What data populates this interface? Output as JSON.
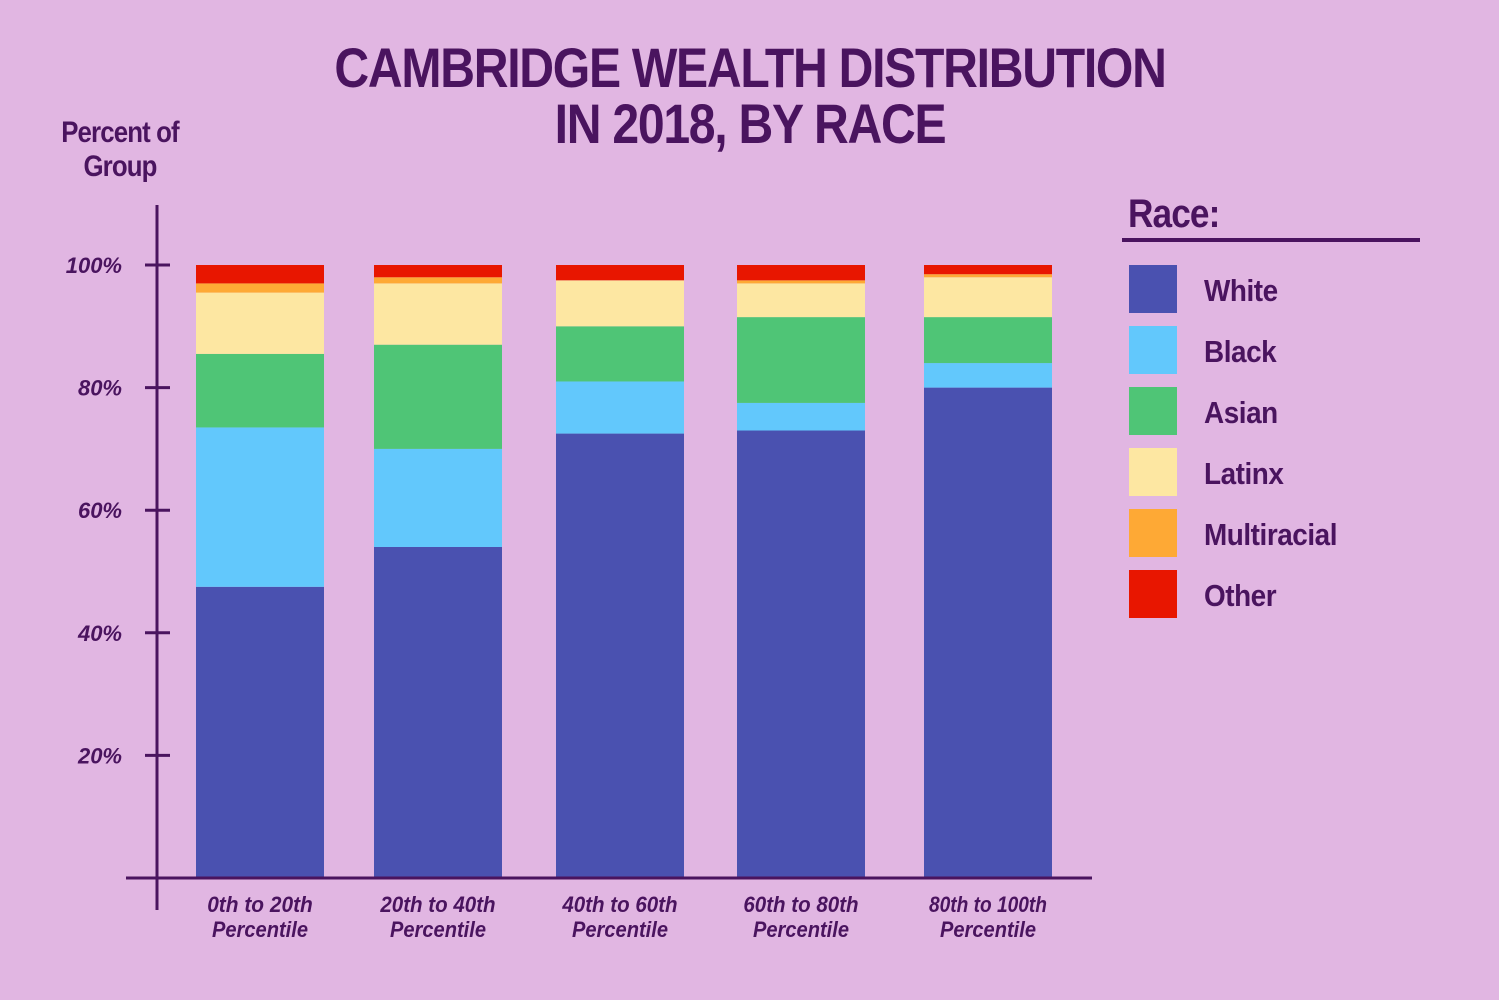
{
  "title_lines": [
    "CAMBRIDGE WEALTH DISTRIBUTION",
    "IN 2018, BY RACE"
  ],
  "legend_title": "Race:",
  "chart_data": {
    "type": "bar",
    "stacked": true,
    "title": "CAMBRIDGE WEALTH DISTRIBUTION IN 2018, BY RACE",
    "ylabel": "Percent of Group",
    "xlabel": "",
    "ylim": [
      0,
      100
    ],
    "yticks": [
      "20%",
      "40%",
      "60%",
      "80%",
      "100%"
    ],
    "ytick_values": [
      20,
      40,
      60,
      80,
      100
    ],
    "categories": [
      [
        "0th to 20th",
        "Percentile"
      ],
      [
        "20th to 40th",
        "Percentile"
      ],
      [
        "40th to 60th",
        "Percentile"
      ],
      [
        "60th to 80th",
        "Percentile"
      ],
      [
        "80th to 100th",
        "Percentile"
      ]
    ],
    "legend_position": "right",
    "series": [
      {
        "name": "White",
        "color": "#4a51b0",
        "values": [
          47.5,
          54.0,
          72.5,
          73.0,
          80.0
        ]
      },
      {
        "name": "Black",
        "color": "#62c8fc",
        "values": [
          26.0,
          16.0,
          8.5,
          4.5,
          4.0
        ]
      },
      {
        "name": "Asian",
        "color": "#4fc576",
        "values": [
          12.0,
          17.0,
          9.0,
          14.0,
          7.5
        ]
      },
      {
        "name": "Latinx",
        "color": "#fde7a2",
        "values": [
          10.0,
          10.0,
          7.5,
          5.5,
          6.5
        ]
      },
      {
        "name": "Multiracial",
        "color": "#fea935",
        "values": [
          1.5,
          1.0,
          0.0,
          0.5,
          0.5
        ]
      },
      {
        "name": "Other",
        "color": "#e81600",
        "values": [
          3.0,
          2.0,
          2.5,
          2.5,
          1.5
        ]
      }
    ]
  }
}
